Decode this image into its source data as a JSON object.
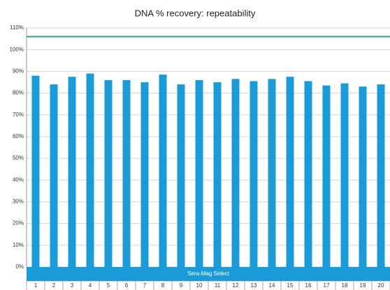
{
  "chart_data": {
    "type": "bar",
    "title": "DNA % recovery: repeatability",
    "group_label": "Sera-Mag Select",
    "categories": [
      "1",
      "2",
      "3",
      "4",
      "5",
      "6",
      "7",
      "8",
      "9",
      "10",
      "11",
      "12",
      "13",
      "14",
      "15",
      "16",
      "17",
      "18",
      "19",
      "20"
    ],
    "values": [
      88,
      84,
      87.5,
      89,
      86,
      86,
      85,
      88.5,
      84,
      86,
      85,
      86.5,
      85.5,
      86.5,
      87.5,
      85.5,
      83.5,
      84.5,
      83,
      84
    ],
    "color": "#1a9bd7",
    "reference_line": 106,
    "reference_color": "#24a86a",
    "ylim": [
      0,
      110
    ],
    "yticks": [
      {
        "value": 0,
        "label": "0%"
      },
      {
        "value": 10,
        "label": "10%"
      },
      {
        "value": 20,
        "label": "20%"
      },
      {
        "value": 30,
        "label": "30%"
      },
      {
        "value": 40,
        "label": "40%"
      },
      {
        "value": 50,
        "label": "50%"
      },
      {
        "value": 60,
        "label": "60%"
      },
      {
        "value": 70,
        "label": "70%"
      },
      {
        "value": 80,
        "label": "80%"
      },
      {
        "value": 90,
        "label": "90%"
      },
      {
        "value": 100,
        "label": "100%"
      },
      {
        "value": 110,
        "label": "110%"
      }
    ],
    "grid": true
  }
}
